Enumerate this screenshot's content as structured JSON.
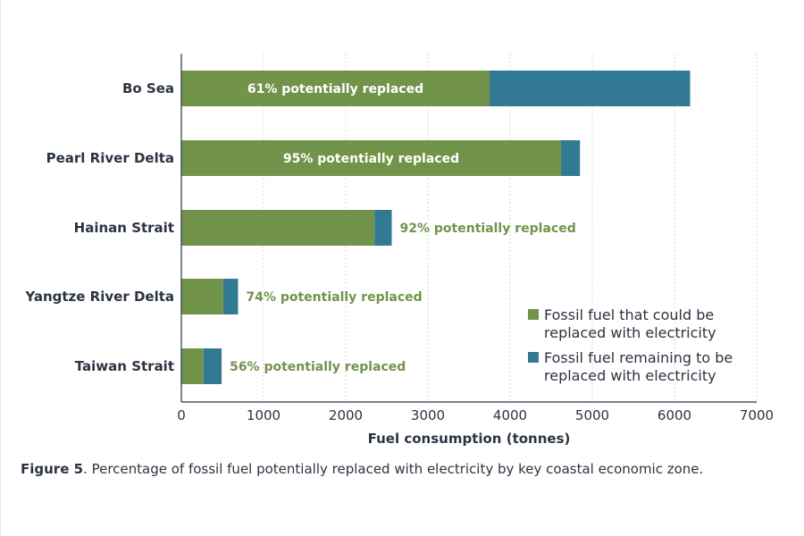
{
  "chart_data": {
    "type": "bar",
    "orientation": "horizontal",
    "stacked": true,
    "categories": [
      "Bo Sea",
      "Pearl River Delta",
      "Hainan Strait",
      "Yangtze River Delta",
      "Taiwan Strait"
    ],
    "series": [
      {
        "name": "Fossil fuel that could be replaced with electricity",
        "color": "#72934a",
        "values": [
          3750,
          4620,
          2350,
          510,
          270
        ]
      },
      {
        "name": "Fossil fuel remaining to be replaced with electricity",
        "color": "#327a93",
        "values": [
          2440,
          230,
          210,
          180,
          220
        ]
      }
    ],
    "annotations": [
      "61% potentially replaced",
      "95% potentially replaced",
      "92% potentially replaced",
      "74% potentially replaced",
      "56% potentially replaced"
    ],
    "xlabel": "Fuel consumption (tonnes)",
    "ylabel": "",
    "xlim": [
      0,
      7000
    ],
    "xticks": [
      0,
      1000,
      2000,
      3000,
      4000,
      5000,
      6000,
      7000
    ],
    "grid": "vertical dotted",
    "legend_position": "bottom-right",
    "legend": [
      [
        "Fossil fuel that could be",
        "replaced with electricity"
      ],
      [
        "Fossil fuel remaining to be",
        "replaced with electricity"
      ]
    ]
  },
  "caption": {
    "label": "Figure 5",
    "text": ". Percentage of fossil fuel potentially replaced with electricity by key coastal economic zone."
  }
}
